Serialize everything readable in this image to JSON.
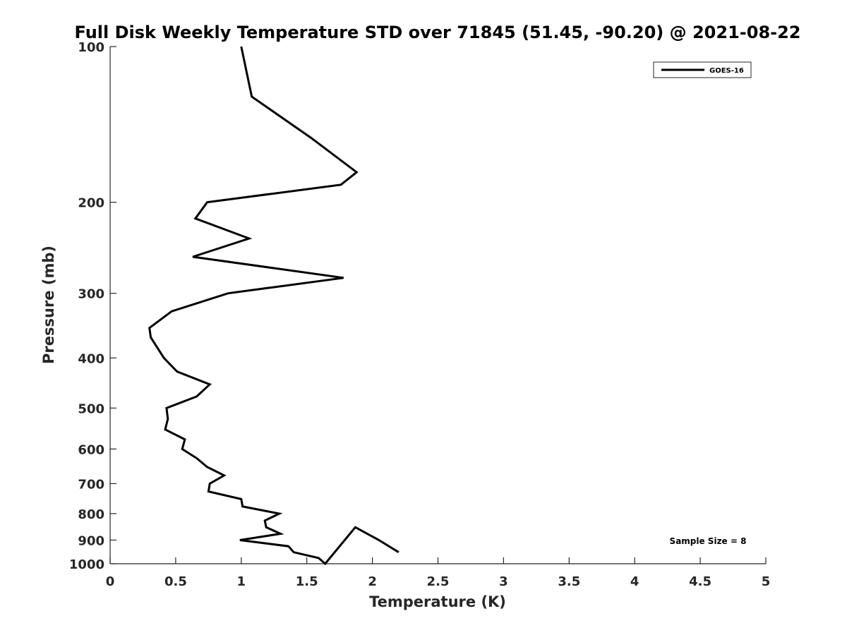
{
  "chart_data": {
    "type": "line",
    "title": "Full Disk Weekly Temperature STD over 71845 (51.45, -90.20) @ 2021-08-22",
    "xlabel": "Temperature (K)",
    "ylabel": "Pressure (mb)",
    "xlim": [
      0,
      5
    ],
    "ylim": [
      100,
      1000
    ],
    "yscale": "log",
    "yreversed": true,
    "xticks": [
      "0",
      "0.5",
      "1",
      "1.5",
      "2",
      "2.5",
      "3",
      "3.5",
      "4",
      "4.5",
      "5"
    ],
    "yticks": [
      "100",
      "200",
      "300",
      "400",
      "500",
      "600",
      "700",
      "800",
      "900",
      "1000"
    ],
    "grid": false,
    "legend_position": "top-right",
    "annotation": "Sample Size = 8",
    "line_color": "#000000",
    "series": [
      {
        "name": "GOES-16",
        "x": [
          1.0,
          1.08,
          1.53,
          1.88,
          1.76,
          0.74,
          0.65,
          1.06,
          0.63,
          1.78,
          0.9,
          0.47,
          0.3,
          0.31,
          0.41,
          0.51,
          0.76,
          0.66,
          0.43,
          0.44,
          0.42,
          0.57,
          0.55,
          0.66,
          0.74,
          0.87,
          0.76,
          0.75,
          1.0,
          1.01,
          1.29,
          1.18,
          1.19,
          1.3,
          0.99,
          1.36,
          1.4,
          1.59,
          1.64,
          1.87,
          2.05,
          2.2
        ],
        "y": [
          100,
          125,
          150,
          175,
          185,
          200,
          215,
          235,
          255,
          280,
          300,
          325,
          350,
          365,
          400,
          425,
          450,
          475,
          500,
          525,
          550,
          575,
          600,
          625,
          650,
          675,
          700,
          725,
          750,
          775,
          800,
          825,
          850,
          875,
          900,
          925,
          950,
          975,
          1000,
          850,
          900,
          950
        ]
      }
    ]
  }
}
